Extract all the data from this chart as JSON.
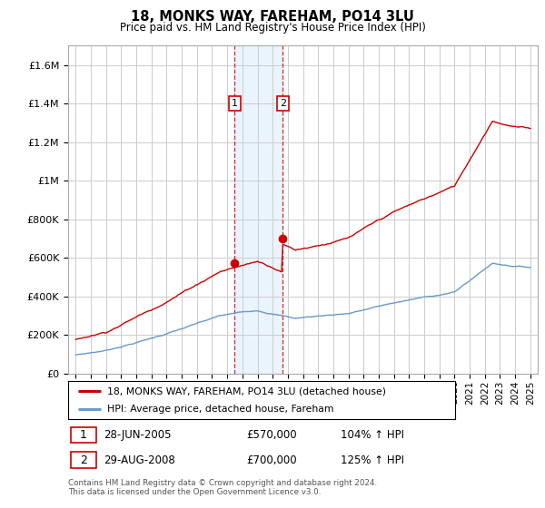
{
  "title": "18, MONKS WAY, FAREHAM, PO14 3LU",
  "subtitle": "Price paid vs. HM Land Registry's House Price Index (HPI)",
  "hpi_label": "HPI: Average price, detached house, Fareham",
  "property_label": "18, MONKS WAY, FAREHAM, PO14 3LU (detached house)",
  "footer": "Contains HM Land Registry data © Crown copyright and database right 2024.\nThis data is licensed under the Open Government Licence v3.0.",
  "sale1_label": "28-JUN-2005",
  "sale1_price": "£570,000",
  "sale1_hpi": "104% ↑ HPI",
  "sale1_year": 2005.49,
  "sale1_value": 570000,
  "sale2_label": "29-AUG-2008",
  "sale2_price": "£700,000",
  "sale2_hpi": "125% ↑ HPI",
  "sale2_year": 2008.66,
  "sale2_value": 700000,
  "ylim_max": 1700000,
  "yticks": [
    0,
    200000,
    400000,
    600000,
    800000,
    1000000,
    1200000,
    1400000,
    1600000
  ],
  "xlim_min": 1994.5,
  "xlim_max": 2025.5,
  "property_color": "#cc0000",
  "hpi_color": "#6699cc",
  "sale_box_color": "#cc0000",
  "shade_color": "#ddeeff",
  "grid_color": "#cccccc"
}
